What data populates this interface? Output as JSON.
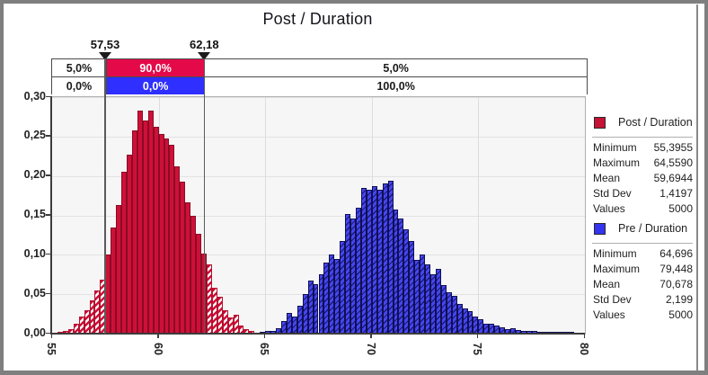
{
  "title": "Post / Duration",
  "colors": {
    "frame_gray": "#7f7f7f",
    "band_red": "#e40a4a",
    "band_blue": "#2f2fff",
    "bar_red": "#ce1038",
    "bar_red_border": "#8a0b26",
    "bar_blue": "#4646ef",
    "bar_blue_border": "#10104d",
    "swatch_red": "#c51235",
    "swatch_blue": "#3333f0"
  },
  "bands": {
    "rows": [
      {
        "cells": [
          {
            "text": "5,0%"
          },
          {
            "text": "90,0%"
          },
          {
            "text": "5,0%"
          }
        ]
      },
      {
        "cells": [
          {
            "text": "0,0%"
          },
          {
            "text": "0,0%"
          },
          {
            "text": "100,0%"
          }
        ]
      }
    ]
  },
  "legend_panels": [
    {
      "title": "Post / Duration",
      "swatch_color": "#c51235",
      "stats": [
        {
          "label": "Minimum",
          "value": "55,3955"
        },
        {
          "label": "Maximum",
          "value": "64,5590"
        },
        {
          "label": "Mean",
          "value": "59,6944"
        },
        {
          "label": "Std Dev",
          "value": "1,4197"
        },
        {
          "label": "Values",
          "value": "5000"
        }
      ]
    },
    {
      "title": "Pre / Duration",
      "swatch_color": "#3333f0",
      "stats": [
        {
          "label": "Minimum",
          "value": "64,696"
        },
        {
          "label": "Maximum",
          "value": "79,448"
        },
        {
          "label": "Mean",
          "value": "70,678"
        },
        {
          "label": "Std Dev",
          "value": "2,199"
        },
        {
          "label": "Values",
          "value": "5000"
        }
      ]
    }
  ],
  "chart_data": {
    "type": "bar",
    "subtype": "histogram-density",
    "title": "Post / Duration",
    "xlabel": "",
    "ylabel": "",
    "xlim": [
      55,
      80
    ],
    "ylim": [
      0,
      0.3
    ],
    "x_ticks": [
      55,
      60,
      65,
      70,
      75,
      80
    ],
    "x_tick_labels": [
      "55",
      "60",
      "65",
      "70",
      "75",
      "80"
    ],
    "y_ticks": [
      0.0,
      0.05,
      0.1,
      0.15,
      0.2,
      0.25,
      0.3
    ],
    "y_tick_labels": [
      "0,00",
      "0,05",
      "0,10",
      "0,15",
      "0,20",
      "0,25",
      "0,30"
    ],
    "grid": true,
    "legend_position": "right",
    "bin_width": 0.25,
    "delimiters": {
      "left": 57.53,
      "right": 62.18,
      "left_label": "57,53",
      "right_label": "62,18",
      "percent_bands_row1": [
        "5,0%",
        "90,0%",
        "5,0%"
      ],
      "percent_bands_row2": [
        "0,0%",
        "0,0%",
        "100,0%"
      ]
    },
    "series": [
      {
        "name": "Post / Duration",
        "color": "#ce1038",
        "hatch": "outside_delimiters",
        "stats": {
          "minimum": 55.3955,
          "maximum": 64.559,
          "mean": 59.6944,
          "std_dev": 1.4197,
          "values": 5000
        },
        "bins": [
          [
            55.375,
            0.001
          ],
          [
            55.625,
            0.003
          ],
          [
            55.875,
            0.006
          ],
          [
            56.125,
            0.012
          ],
          [
            56.375,
            0.022
          ],
          [
            56.625,
            0.03
          ],
          [
            56.875,
            0.042
          ],
          [
            57.125,
            0.055
          ],
          [
            57.375,
            0.068
          ],
          [
            57.625,
            0.1
          ],
          [
            57.875,
            0.135
          ],
          [
            58.125,
            0.163
          ],
          [
            58.375,
            0.205
          ],
          [
            58.625,
            0.227
          ],
          [
            58.875,
            0.258
          ],
          [
            59.125,
            0.283
          ],
          [
            59.375,
            0.27
          ],
          [
            59.625,
            0.283
          ],
          [
            59.875,
            0.262
          ],
          [
            60.125,
            0.253
          ],
          [
            60.375,
            0.248
          ],
          [
            60.625,
            0.24
          ],
          [
            60.875,
            0.212
          ],
          [
            61.125,
            0.193
          ],
          [
            61.375,
            0.166
          ],
          [
            61.625,
            0.15
          ],
          [
            61.875,
            0.127
          ],
          [
            62.125,
            0.102
          ],
          [
            62.375,
            0.088
          ],
          [
            62.625,
            0.058
          ],
          [
            62.875,
            0.047
          ],
          [
            63.125,
            0.03
          ],
          [
            63.375,
            0.02
          ],
          [
            63.625,
            0.024
          ],
          [
            63.875,
            0.01
          ],
          [
            64.125,
            0.006
          ],
          [
            64.375,
            0.003
          ]
        ]
      },
      {
        "name": "Pre / Duration",
        "color": "#4646ef",
        "hatch": "all",
        "stats": {
          "minimum": 64.696,
          "maximum": 79.448,
          "mean": 70.678,
          "std_dev": 2.199,
          "values": 5000
        },
        "bins": [
          [
            64.875,
            0.002
          ],
          [
            65.125,
            0.003
          ],
          [
            65.375,
            0.004
          ],
          [
            65.625,
            0.007
          ],
          [
            65.875,
            0.016
          ],
          [
            66.125,
            0.026
          ],
          [
            66.375,
            0.022
          ],
          [
            66.625,
            0.035
          ],
          [
            66.875,
            0.05
          ],
          [
            67.125,
            0.067
          ],
          [
            67.375,
            0.063
          ],
          [
            67.625,
            0.075
          ],
          [
            67.875,
            0.09
          ],
          [
            68.125,
            0.1
          ],
          [
            68.375,
            0.095
          ],
          [
            68.625,
            0.117
          ],
          [
            68.875,
            0.152
          ],
          [
            69.125,
            0.146
          ],
          [
            69.375,
            0.16
          ],
          [
            69.625,
            0.185
          ],
          [
            69.875,
            0.183
          ],
          [
            70.125,
            0.187
          ],
          [
            70.375,
            0.183
          ],
          [
            70.625,
            0.19
          ],
          [
            70.875,
            0.194
          ],
          [
            71.125,
            0.157
          ],
          [
            71.375,
            0.146
          ],
          [
            71.625,
            0.132
          ],
          [
            71.875,
            0.117
          ],
          [
            72.125,
            0.094
          ],
          [
            72.375,
            0.1
          ],
          [
            72.625,
            0.088
          ],
          [
            72.875,
            0.075
          ],
          [
            73.125,
            0.082
          ],
          [
            73.375,
            0.062
          ],
          [
            73.625,
            0.053
          ],
          [
            73.875,
            0.048
          ],
          [
            74.125,
            0.038
          ],
          [
            74.375,
            0.032
          ],
          [
            74.625,
            0.028
          ],
          [
            74.875,
            0.022
          ],
          [
            75.125,
            0.018
          ],
          [
            75.375,
            0.013
          ],
          [
            75.625,
            0.012
          ],
          [
            75.875,
            0.01
          ],
          [
            76.125,
            0.008
          ],
          [
            76.375,
            0.006
          ],
          [
            76.625,
            0.007
          ],
          [
            76.875,
            0.005
          ],
          [
            77.125,
            0.004
          ],
          [
            77.375,
            0.003
          ],
          [
            77.625,
            0.003
          ],
          [
            77.875,
            0.002
          ],
          [
            78.125,
            0.002
          ],
          [
            78.375,
            0.002
          ],
          [
            78.625,
            0.001
          ],
          [
            78.875,
            0.001
          ],
          [
            79.125,
            0.001
          ],
          [
            79.375,
            0.001
          ]
        ]
      }
    ]
  }
}
